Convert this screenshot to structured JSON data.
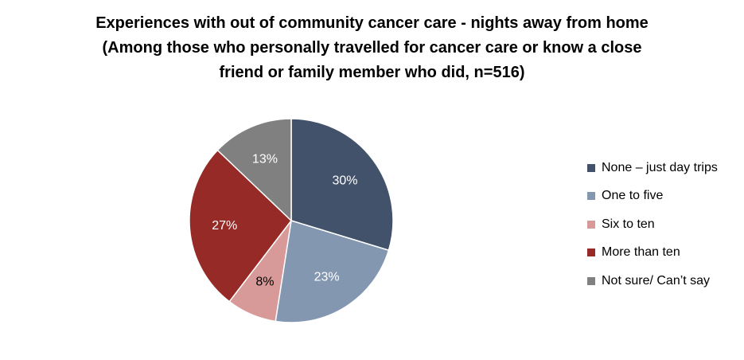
{
  "chart_data": {
    "type": "pie",
    "title_lines": [
      "Experiences with out of community cancer care - nights away from home",
      "(Among those who personally travelled for cancer care or know a close",
      "friend or family member who did, n=516)"
    ],
    "categories": [
      "None – just day trips",
      "One to five",
      "Six to ten",
      "More than ten",
      "Not sure/ Can’t say"
    ],
    "values": [
      30,
      23,
      8,
      27,
      13
    ],
    "labels": [
      "30%",
      "23%",
      "8%",
      "27%",
      "13%"
    ],
    "colors": [
      "#43526B",
      "#8497B0",
      "#D79A98",
      "#962A26",
      "#808080"
    ],
    "label_colors": [
      "#ffffff",
      "#ffffff",
      "#000000",
      "#ffffff",
      "#ffffff"
    ],
    "legend_position": "right",
    "start": "12 o'clock, clockwise"
  }
}
